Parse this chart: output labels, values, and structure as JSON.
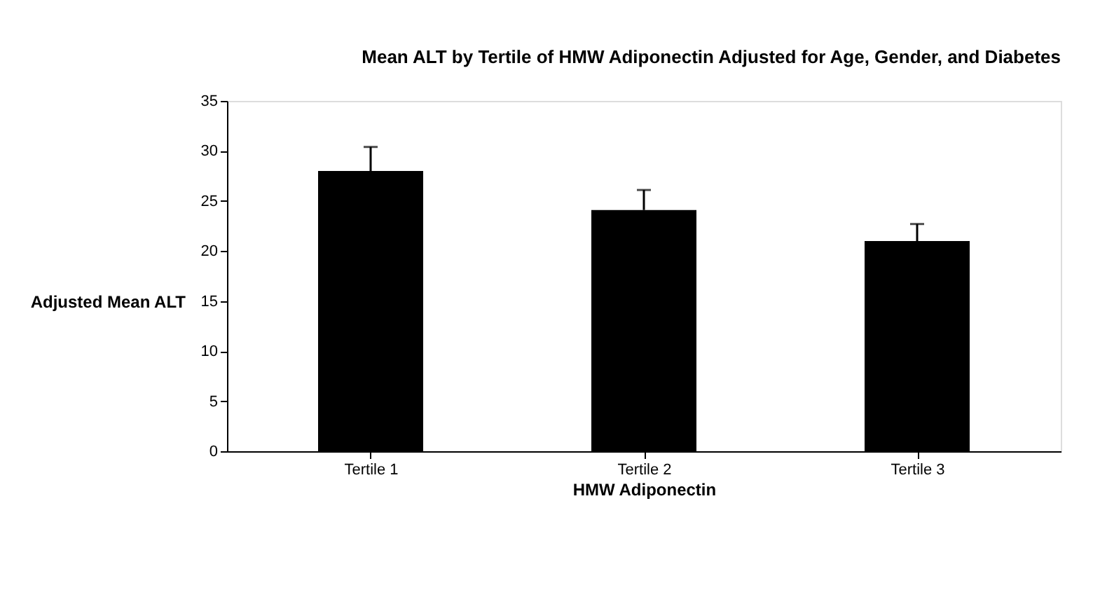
{
  "chart_data": {
    "type": "bar",
    "title": "Mean ALT by Tertile of HMW Adiponectin Adjusted for Age, Gender, and Diabetes",
    "xlabel": "HMW Adiponectin",
    "ylabel": "Adjusted Mean ALT",
    "categories": [
      "Tertile 1",
      "Tertile 2",
      "Tertile 3"
    ],
    "values": [
      28,
      24.1,
      21
    ],
    "errors": [
      [
        28,
        30.4
      ],
      [
        24.1,
        26.1
      ],
      [
        21,
        22.7
      ]
    ],
    "color": "#000000",
    "ylim": [
      0,
      35
    ],
    "yticks": [
      0,
      5,
      10,
      15,
      20,
      25,
      30,
      35
    ],
    "grid": false
  }
}
